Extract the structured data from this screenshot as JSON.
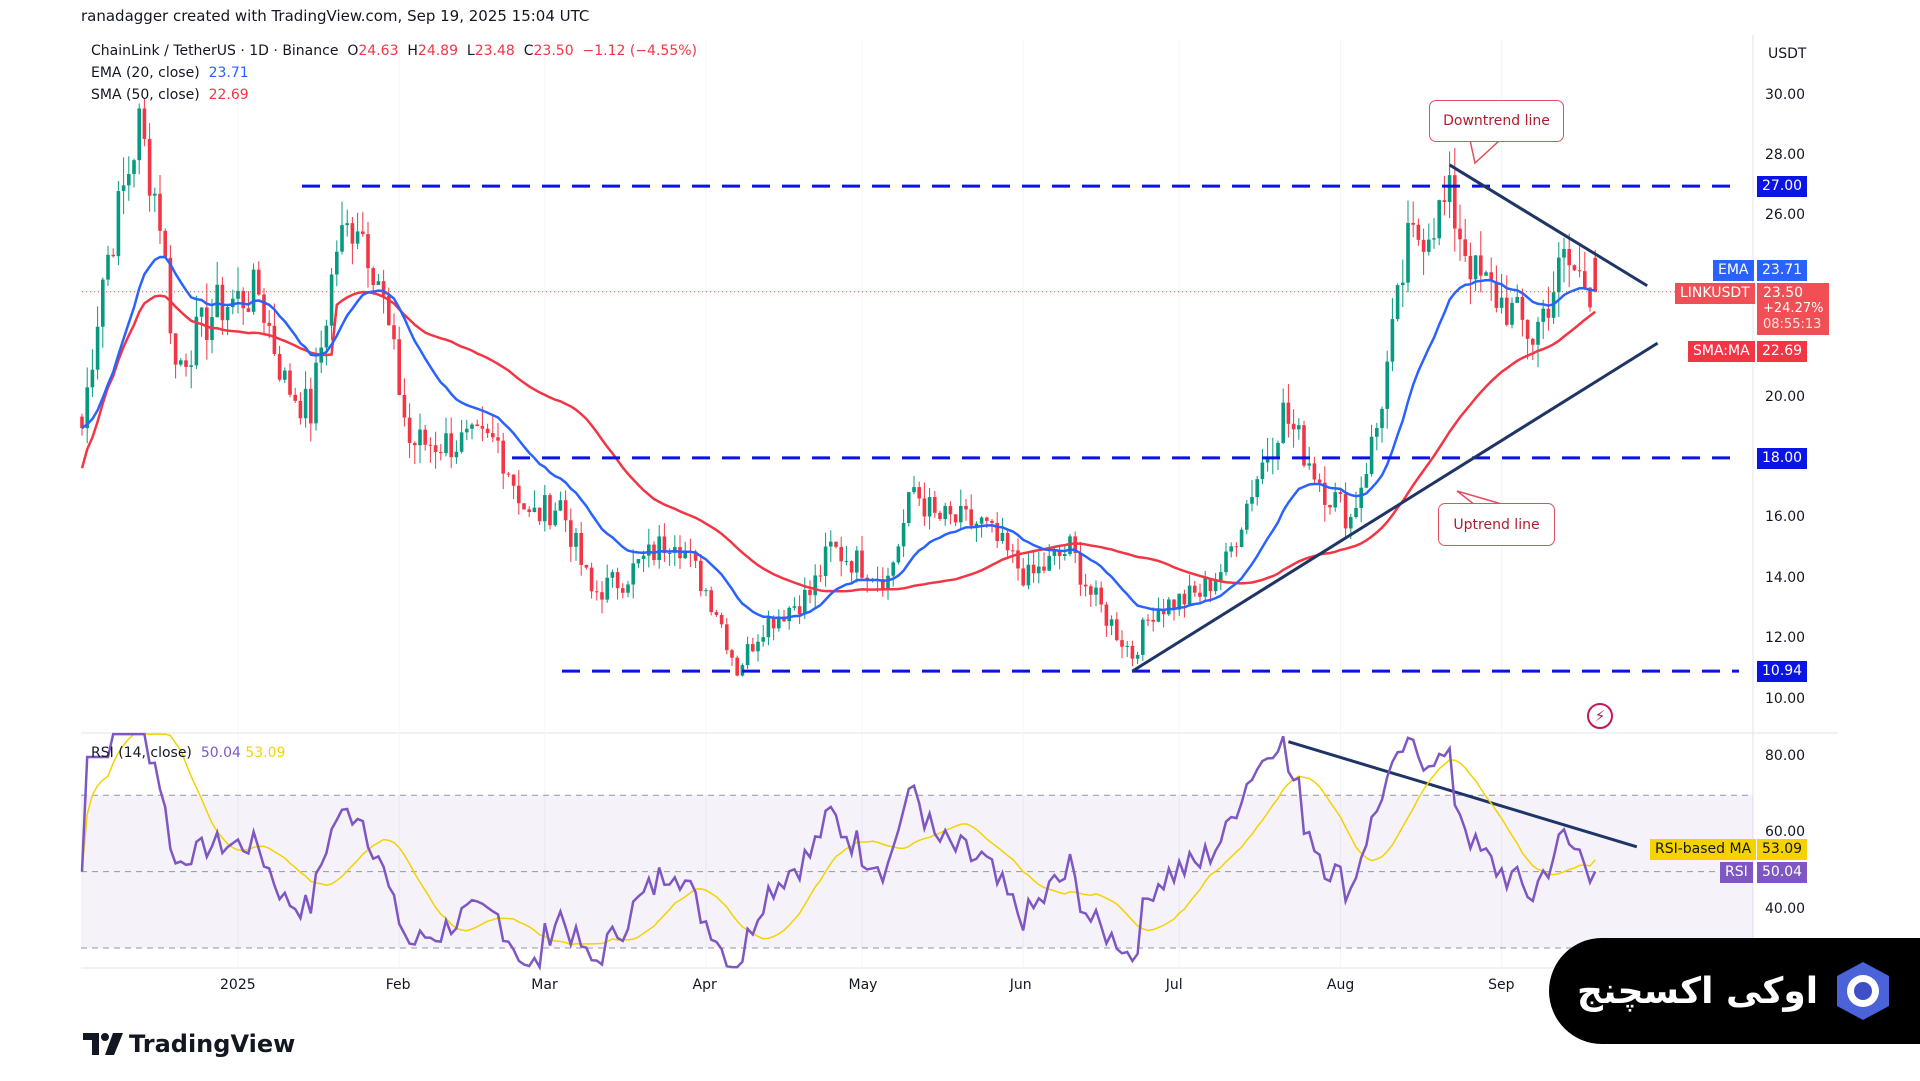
{
  "credit": "ranadagger created with TradingView.com, Sep 19, 2025 15:04 UTC",
  "legend": {
    "symbol": "ChainLink / TetherUS · 1D · Binance",
    "o_label": "O",
    "o": "24.63",
    "h_label": "H",
    "h": "24.89",
    "l_label": "L",
    "l": "23.48",
    "c_label": "C",
    "c": "23.50",
    "change": "−1.12 (−4.55%)",
    "ema_label": "EMA (20, close)",
    "ema_value": "23.71",
    "sma_label": "SMA (50, close)",
    "sma_value": "22.69",
    "rsi_label": "RSI (14, close)",
    "rsi_value": "50.04",
    "rsi_ma_value": "53.09"
  },
  "axis": {
    "currency": "USDT",
    "price_ticks": [
      "30.00",
      "28.00",
      "26.00",
      "20.00",
      "16.00",
      "14.00",
      "12.00",
      "10.00"
    ],
    "rsi_ticks": [
      "80.00",
      "60.00",
      "40.00"
    ],
    "time_ticks": [
      "2025",
      "Feb",
      "Mar",
      "Apr",
      "May",
      "Jun",
      "Jul",
      "Aug",
      "Sep"
    ]
  },
  "tags": {
    "level_27": "27.00",
    "level_18": "18.00",
    "level_1094": "10.94",
    "ema_name": "EMA",
    "ema_value": "23.71",
    "symbol_name": "LINKUSDT",
    "price": "23.50",
    "change_pct": "+24.27%",
    "countdown": "08:55:13",
    "sma_name": "SMA:MA",
    "sma_value": "22.69",
    "rsi_ma_name": "RSI-based MA",
    "rsi_ma_value": "53.09",
    "rsi_name": "RSI",
    "rsi_value": "50.04"
  },
  "annotations": {
    "downtrend": "Downtrend line",
    "uptrend": "Uptrend line"
  },
  "branding": {
    "tradingview": "TradingView",
    "watermark": "اوکی اکسچنج"
  },
  "colors": {
    "up": "#089981",
    "down": "#f23645",
    "ema": "#2962ff",
    "sma": "#f23645",
    "levels": "#0a14e6",
    "trend": "#1f3566",
    "rsi": "#7e57c2",
    "rsi_ma": "#f5d300"
  },
  "chart_data": {
    "type": "candlestick",
    "title": "ChainLink / TetherUS · 1D · Binance",
    "ylabel": "USDT",
    "ylim": [
      9.5,
      31
    ],
    "rsi_ylim": [
      25,
      85
    ],
    "start_date": "2024-12-02",
    "end_date": "2025-09-19",
    "close_keypoints": [
      [
        "2024-12-02",
        19
      ],
      [
        "2024-12-06",
        24
      ],
      [
        "2024-12-13",
        29
      ],
      [
        "2024-12-17",
        26
      ],
      [
        "2024-12-20",
        21
      ],
      [
        "2024-12-28",
        23
      ],
      [
        "2025-01-05",
        23.5
      ],
      [
        "2025-01-10",
        20.5
      ],
      [
        "2025-01-15",
        19.5
      ],
      [
        "2025-01-20",
        25
      ],
      [
        "2025-01-24",
        26
      ],
      [
        "2025-01-28",
        24
      ],
      [
        "2025-02-03",
        18.5
      ],
      [
        "2025-02-10",
        18.5
      ],
      [
        "2025-02-20",
        18.5
      ],
      [
        "2025-02-26",
        16
      ],
      [
        "2025-03-04",
        16.5
      ],
      [
        "2025-03-10",
        13.5
      ],
      [
        "2025-03-16",
        14
      ],
      [
        "2025-03-26",
        15.5
      ],
      [
        "2025-04-03",
        13
      ],
      [
        "2025-04-07",
        11
      ],
      [
        "2025-04-12",
        12.5
      ],
      [
        "2025-04-21",
        13.5
      ],
      [
        "2025-04-25",
        15
      ],
      [
        "2025-05-06",
        14
      ],
      [
        "2025-05-11",
        17
      ],
      [
        "2025-05-15",
        16
      ],
      [
        "2025-05-24",
        15.8
      ],
      [
        "2025-06-02",
        14
      ],
      [
        "2025-06-10",
        15
      ],
      [
        "2025-06-14",
        13.5
      ],
      [
        "2025-06-22",
        11.5
      ],
      [
        "2025-06-26",
        13
      ],
      [
        "2025-07-05",
        13.5
      ],
      [
        "2025-07-10",
        14.5
      ],
      [
        "2025-07-15",
        17
      ],
      [
        "2025-07-21",
        19.5
      ],
      [
        "2025-07-29",
        17
      ],
      [
        "2025-08-03",
        16
      ],
      [
        "2025-08-08",
        19
      ],
      [
        "2025-08-14",
        25
      ],
      [
        "2025-08-22",
        26.5
      ],
      [
        "2025-08-27",
        24
      ],
      [
        "2025-09-02",
        23
      ],
      [
        "2025-09-07",
        22
      ],
      [
        "2025-09-13",
        24.5
      ],
      [
        "2025-09-19",
        23.5
      ]
    ],
    "last": {
      "open": 24.63,
      "high": 24.89,
      "low": 23.48,
      "close": 23.5
    },
    "horizontal_levels": [
      27.0,
      18.0,
      10.94
    ],
    "downtrend_line": [
      [
        "2025-08-22",
        27.7
      ],
      [
        "2025-09-29",
        23.7
      ]
    ],
    "uptrend_line": [
      [
        "2025-06-22",
        10.94
      ],
      [
        "2025-10-01",
        21.8
      ]
    ],
    "rsi_downtrend_line": [
      [
        "2025-07-22",
        84
      ],
      [
        "2025-09-27",
        56.5
      ]
    ],
    "rsi_bands": [
      70,
      50,
      30
    ],
    "indicators": {
      "ema20": 23.71,
      "sma50": 22.69,
      "rsi14": 50.04,
      "rsi_ma": 53.09
    }
  }
}
